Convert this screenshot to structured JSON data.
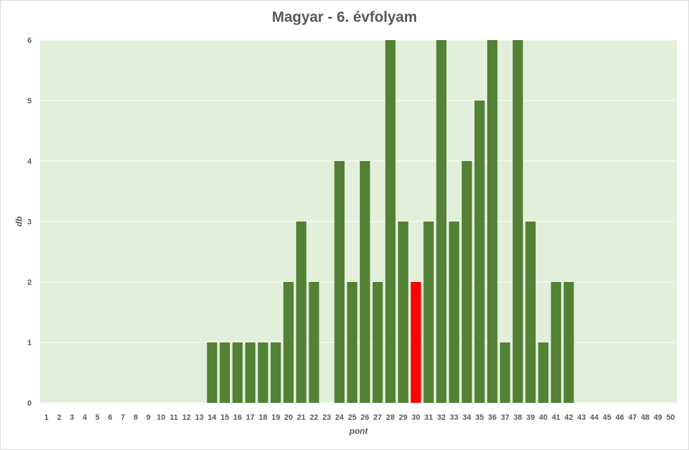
{
  "chart_data": {
    "type": "bar",
    "title": "Magyar - 6. évfolyam",
    "xlabel": "pont",
    "ylabel": "db",
    "ylim": [
      0,
      6
    ],
    "yticks": [
      0,
      1,
      2,
      3,
      4,
      5,
      6
    ],
    "grid": true,
    "categories": [
      "1",
      "2",
      "3",
      "4",
      "5",
      "6",
      "7",
      "8",
      "9",
      "10",
      "11",
      "12",
      "13",
      "14",
      "15",
      "16",
      "17",
      "18",
      "19",
      "20",
      "21",
      "22",
      "23",
      "24",
      "25",
      "26",
      "27",
      "28",
      "29",
      "30",
      "31",
      "32",
      "33",
      "34",
      "35",
      "36",
      "37",
      "38",
      "39",
      "40",
      "41",
      "42",
      "43",
      "44",
      "45",
      "46",
      "47",
      "48",
      "49",
      "50"
    ],
    "values": [
      0,
      0,
      0,
      0,
      0,
      0,
      0,
      0,
      0,
      0,
      0,
      0,
      0,
      1,
      1,
      1,
      1,
      1,
      1,
      2,
      3,
      2,
      0,
      4,
      2,
      4,
      2,
      6,
      3,
      2,
      3,
      6,
      3,
      4,
      5,
      6,
      1,
      6,
      3,
      1,
      2,
      2,
      0,
      0,
      0,
      0,
      0,
      0,
      0,
      0
    ],
    "highlight_category": "30",
    "colors": {
      "bar": "#538135",
      "highlight": "#ff0000",
      "plot_background": "#e2efda",
      "gridline": "#ffffff",
      "text": "#595959"
    }
  }
}
